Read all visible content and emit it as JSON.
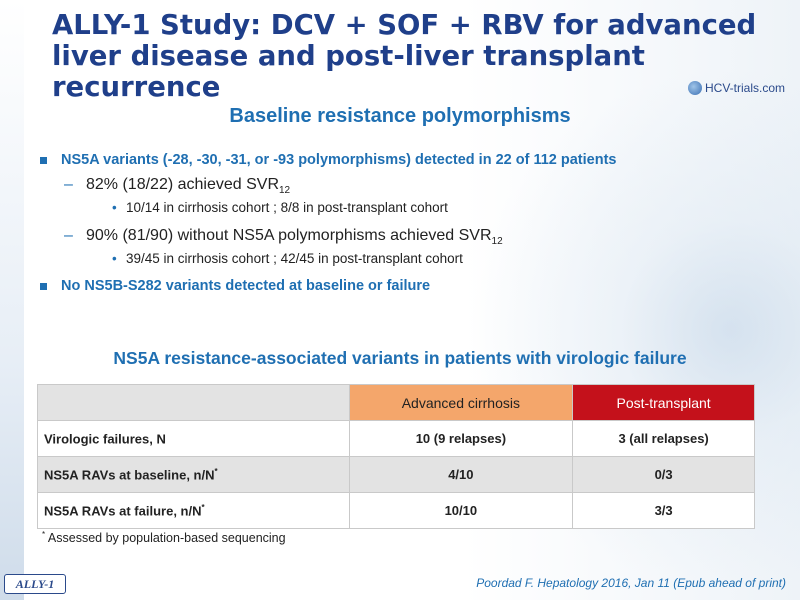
{
  "slide": {
    "title": "ALLY-1 Study: DCV + SOF + RBV for advanced liver disease and post-liver transplant recurrence",
    "logo_text": "HCV-trials.com",
    "subtitle": "Baseline resistance polymorphisms",
    "bullets": [
      {
        "text": "NS5A variants (-28, -30, -31, or -93 polymorphisms) detected in 22 of 112 patients",
        "sub": [
          {
            "text": "82% (18/22) achieved SVR",
            "subscript": "12",
            "detail": "10/14 in cirrhosis cohort ; 8/8 in post-transplant cohort"
          },
          {
            "text": "90% (81/90) without NS5A polymorphisms achieved SVR",
            "subscript": "12",
            "detail": "39/45 in cirrhosis cohort ; 42/45 in post-transplant cohort"
          }
        ]
      },
      {
        "text": "No NS5B-S282 variants detected at baseline or failure"
      }
    ],
    "table_title": "NS5A resistance-associated variants in patients with virologic failure",
    "table": {
      "headers": [
        "",
        "Advanced cirrhosis",
        "Post-transplant"
      ],
      "rows": [
        {
          "label": "Virologic failures, N",
          "mark": "",
          "cirrhosis": "10 (9 relapses)",
          "post": "3 (all relapses)"
        },
        {
          "label": "NS5A RAVs at baseline, n/N",
          "mark": "*",
          "cirrhosis": "4/10",
          "post": "0/3"
        },
        {
          "label": "NS5A RAVs at failure, n/N",
          "mark": "*",
          "cirrhosis": "10/10",
          "post": "3/3"
        }
      ]
    },
    "footnote_mark": "*",
    "footnote": "Assessed by population-based sequencing",
    "badge": "ALLY-1",
    "citation": "Poordad F. Hepatology 2016, Jan 11 (Epub ahead of print)",
    "colors": {
      "title": "#1f3f8a",
      "accent": "#1f6fb2",
      "cirrhosis_header": "#f4a66b",
      "post_header": "#c4111b"
    }
  }
}
